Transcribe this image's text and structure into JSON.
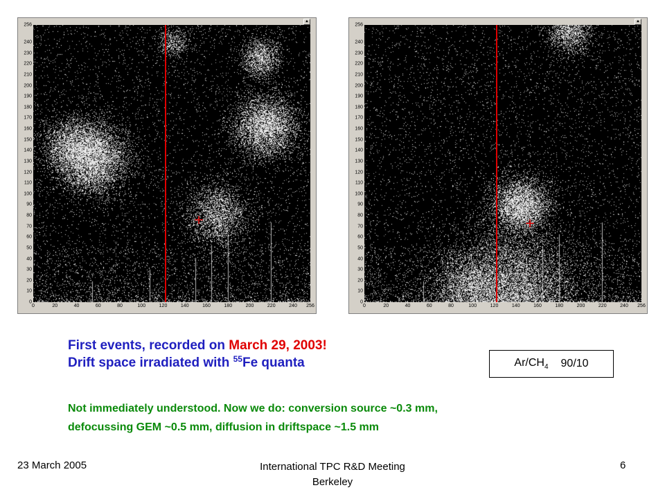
{
  "plots": [
    {
      "id": "left",
      "y_ticks": [
        "0",
        "10",
        "20",
        "30",
        "40",
        "50",
        "60",
        "70",
        "80",
        "90",
        "100",
        "110",
        "120",
        "130",
        "140",
        "150",
        "160",
        "170",
        "180",
        "190",
        "200",
        "210",
        "220",
        "230",
        "240",
        "256"
      ],
      "x_ticks": [
        "0",
        "20",
        "40",
        "60",
        "80",
        "100",
        "120",
        "140",
        "160",
        "180",
        "200",
        "220",
        "240",
        "256"
      ],
      "red_line_x": 122,
      "cross": {
        "x": 152,
        "y": 75
      },
      "blobs": [
        {
          "x": 55,
          "y": 132,
          "r": 22,
          "density": 0.85
        },
        {
          "x": 35,
          "y": 145,
          "r": 18,
          "density": 0.5
        },
        {
          "x": 215,
          "y": 162,
          "r": 20,
          "density": 0.8
        },
        {
          "x": 210,
          "y": 225,
          "r": 12,
          "density": 0.65
        },
        {
          "x": 170,
          "y": 80,
          "r": 20,
          "density": 0.45
        },
        {
          "x": 130,
          "y": 240,
          "r": 10,
          "density": 0.35
        }
      ]
    },
    {
      "id": "right",
      "y_ticks": [
        "0",
        "10",
        "20",
        "30",
        "40",
        "50",
        "60",
        "70",
        "80",
        "90",
        "100",
        "110",
        "120",
        "130",
        "140",
        "150",
        "160",
        "170",
        "180",
        "190",
        "200",
        "210",
        "220",
        "230",
        "240",
        "256"
      ],
      "x_ticks": [
        "0",
        "20",
        "40",
        "60",
        "80",
        "100",
        "120",
        "140",
        "160",
        "180",
        "200",
        "220",
        "240",
        "256"
      ],
      "red_line_x": 122,
      "cross": {
        "x": 152,
        "y": 72
      },
      "blobs": [
        {
          "x": 145,
          "y": 90,
          "r": 18,
          "density": 0.9
        },
        {
          "x": 135,
          "y": 8,
          "r": 40,
          "density": 0.95
        },
        {
          "x": 190,
          "y": 250,
          "r": 14,
          "density": 0.55
        },
        {
          "x": 95,
          "y": 15,
          "r": 20,
          "density": 0.35
        }
      ]
    }
  ],
  "caption": {
    "line1_prefix": "First events, recorded on ",
    "line1_date": "March 29, 2003!",
    "line2_prefix": "Drift space irradiated with ",
    "line2_sup": "55",
    "line2_suffix": "Fe quanta"
  },
  "gas": {
    "name_main": "Ar/CH",
    "name_sub": "4",
    "ratio": "90/10"
  },
  "note": {
    "line1": "Not immediately understood. Now we do: conversion source ~0.3 mm,",
    "line2": "defocussing GEM ~0.5 mm, diffusion in driftspace ~1.5 mm"
  },
  "footer": {
    "date": "23 March 2005",
    "meeting_line1": "International TPC R&D Meeting",
    "meeting_line2": "Berkeley",
    "page": "6"
  },
  "colors": {
    "title_blue": "#1f1fbf",
    "date_red": "#e00000",
    "note_green": "#0a8a0a"
  }
}
